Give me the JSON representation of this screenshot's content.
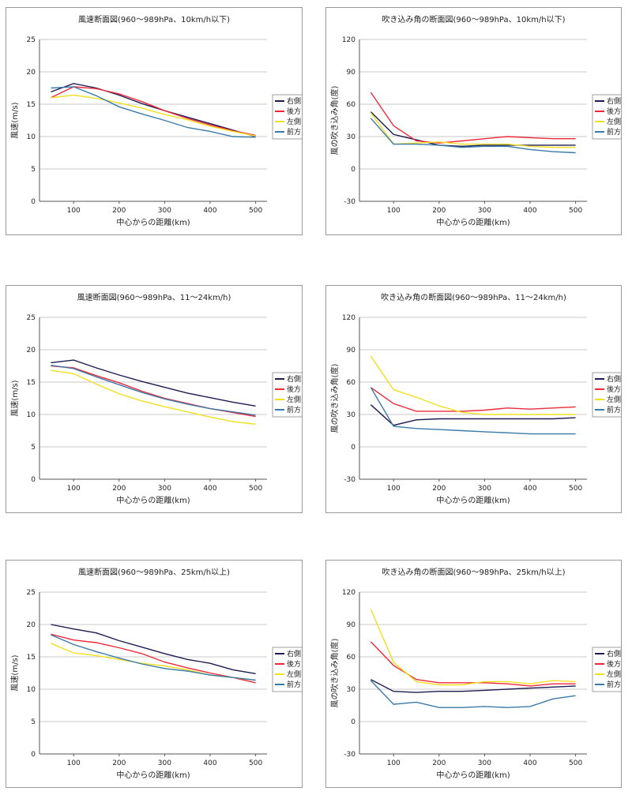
{
  "legend": [
    "右側",
    "後方",
    "左側",
    "前方"
  ],
  "colors": {
    "右側": "#1c1c50",
    "後方": "#ee2a3a",
    "左側": "#f0e020",
    "前方": "#3a7aa8"
  },
  "chart_data": [
    {
      "type": "line",
      "title": "風速断面図(960～989hPa、10km/h以下)",
      "xlabel": "中心からの距離(km)",
      "ylabel": "風速(m/s)",
      "xlim": [
        25,
        525
      ],
      "ylim": [
        0,
        25
      ],
      "yticks": [
        0,
        5,
        10,
        15,
        20,
        25
      ],
      "xticks": [
        100,
        200,
        300,
        400,
        500
      ],
      "x": [
        50,
        100,
        150,
        200,
        250,
        300,
        350,
        400,
        450,
        500
      ],
      "series": [
        {
          "name": "右側",
          "values": [
            16.9,
            18.2,
            17.5,
            16.4,
            15.1,
            14.0,
            13.0,
            12.0,
            11.0,
            10.0
          ]
        },
        {
          "name": "後方",
          "values": [
            16.0,
            17.7,
            17.4,
            16.6,
            15.4,
            14.0,
            12.8,
            11.8,
            10.9,
            10.2
          ]
        },
        {
          "name": "左側",
          "values": [
            16.0,
            16.4,
            15.9,
            15.2,
            14.4,
            13.4,
            12.6,
            11.6,
            10.8,
            10.1
          ]
        },
        {
          "name": "前方",
          "values": [
            17.5,
            17.7,
            16.3,
            14.6,
            13.5,
            12.5,
            11.4,
            10.8,
            10.0,
            9.9
          ]
        }
      ]
    },
    {
      "type": "line",
      "title": "吹き込み角の断面図(960～989hPa、10km/h以下)",
      "xlabel": "中心からの距離(km)",
      "ylabel": "風の吹き込み角(度)",
      "xlim": [
        25,
        525
      ],
      "ylim": [
        -30,
        120
      ],
      "yticks": [
        -30,
        0,
        30,
        60,
        90,
        120
      ],
      "xticks": [
        100,
        200,
        300,
        400,
        500
      ],
      "x": [
        50,
        100,
        150,
        200,
        250,
        300,
        350,
        400,
        450,
        500
      ],
      "series": [
        {
          "name": "右側",
          "values": [
            53,
            32,
            27,
            22,
            21,
            22,
            22,
            22,
            22,
            22
          ]
        },
        {
          "name": "後方",
          "values": [
            71,
            40,
            26,
            24,
            26,
            28,
            30,
            29,
            28,
            28
          ]
        },
        {
          "name": "左側",
          "values": [
            52,
            23,
            24,
            25,
            23,
            23,
            23,
            21,
            20,
            20
          ]
        },
        {
          "name": "前方",
          "values": [
            47,
            23,
            23,
            22,
            20,
            21,
            21,
            18,
            16,
            15
          ]
        }
      ]
    },
    {
      "type": "line",
      "title": "風速断面図(960～989hPa、11～24km/h)",
      "xlabel": "中心からの距離(km)",
      "ylabel": "風速(m/s)",
      "xlim": [
        25,
        525
      ],
      "ylim": [
        0,
        25
      ],
      "yticks": [
        0,
        5,
        10,
        15,
        20,
        25
      ],
      "xticks": [
        100,
        200,
        300,
        400,
        500
      ],
      "x": [
        50,
        100,
        150,
        200,
        250,
        300,
        350,
        400,
        450,
        500
      ],
      "series": [
        {
          "name": "右側",
          "values": [
            18.0,
            18.4,
            17.2,
            16.1,
            15.1,
            14.2,
            13.3,
            12.6,
            11.9,
            11.3
          ]
        },
        {
          "name": "後方",
          "values": [
            17.5,
            17.2,
            16.0,
            14.9,
            13.6,
            12.5,
            11.7,
            10.9,
            10.3,
            9.7
          ]
        },
        {
          "name": "左側",
          "values": [
            16.8,
            16.3,
            14.7,
            13.2,
            12.1,
            11.2,
            10.4,
            9.6,
            8.9,
            8.5
          ]
        },
        {
          "name": "前方",
          "values": [
            17.6,
            17.1,
            15.8,
            14.6,
            13.4,
            12.4,
            11.6,
            10.9,
            10.4,
            9.9
          ]
        }
      ]
    },
    {
      "type": "line",
      "title": "吹き込み角の断面図(960～989hPa、11～24km/h)",
      "xlabel": "中心からの距離(km)",
      "ylabel": "風の吹き込み角(度)",
      "xlim": [
        25,
        525
      ],
      "ylim": [
        -30,
        120
      ],
      "yticks": [
        -30,
        0,
        30,
        60,
        90,
        120
      ],
      "xticks": [
        100,
        200,
        300,
        400,
        500
      ],
      "x": [
        50,
        100,
        150,
        200,
        250,
        300,
        350,
        400,
        450,
        500
      ],
      "series": [
        {
          "name": "右側",
          "values": [
            39,
            20,
            25,
            26,
            26,
            26,
            26,
            26,
            26,
            27
          ]
        },
        {
          "name": "後方",
          "values": [
            55,
            40,
            33,
            33,
            33,
            34,
            36,
            35,
            36,
            37
          ]
        },
        {
          "name": "左側",
          "values": [
            84,
            53,
            46,
            38,
            32,
            30,
            30,
            30,
            30,
            30
          ]
        },
        {
          "name": "前方",
          "values": [
            55,
            19,
            17,
            16,
            15,
            14,
            13,
            12,
            12,
            12
          ]
        }
      ]
    },
    {
      "type": "line",
      "title": "風速断面図(960～989hPa、25km/h以上)",
      "xlabel": "中心からの距離(km)",
      "ylabel": "風速(m/s)",
      "xlim": [
        25,
        525
      ],
      "ylim": [
        0,
        25
      ],
      "yticks": [
        0,
        5,
        10,
        15,
        20,
        25
      ],
      "xticks": [
        100,
        200,
        300,
        400,
        500
      ],
      "x": [
        50,
        100,
        150,
        200,
        250,
        300,
        350,
        400,
        450,
        500
      ],
      "series": [
        {
          "name": "右側",
          "values": [
            20.0,
            19.3,
            18.7,
            17.5,
            16.5,
            15.5,
            14.6,
            14.0,
            13.0,
            12.4
          ]
        },
        {
          "name": "後方",
          "values": [
            18.5,
            17.6,
            17.2,
            16.4,
            15.5,
            14.2,
            13.3,
            12.5,
            11.8,
            11.0
          ]
        },
        {
          "name": "左側",
          "values": [
            17.1,
            15.6,
            15.2,
            14.6,
            14.0,
            13.6,
            13.0,
            12.2,
            11.8,
            11.4
          ]
        },
        {
          "name": "前方",
          "values": [
            18.4,
            16.9,
            15.8,
            14.8,
            13.9,
            13.2,
            12.8,
            12.2,
            11.8,
            11.4
          ]
        }
      ]
    },
    {
      "type": "line",
      "title": "吹き込み角の断面図(960～989hPa、25km/h以上)",
      "xlabel": "中心からの距離(km)",
      "ylabel": "風の吹き込み角(度)",
      "xlim": [
        25,
        525
      ],
      "ylim": [
        -30,
        120
      ],
      "yticks": [
        -30,
        0,
        30,
        60,
        90,
        120
      ],
      "xticks": [
        100,
        200,
        300,
        400,
        500
      ],
      "x": [
        50,
        100,
        150,
        200,
        250,
        300,
        350,
        400,
        450,
        500
      ],
      "series": [
        {
          "name": "右側",
          "values": [
            39,
            28,
            27,
            28,
            28,
            29,
            30,
            31,
            32,
            33
          ]
        },
        {
          "name": "後方",
          "values": [
            74,
            52,
            39,
            36,
            36,
            36,
            35,
            33,
            35,
            35
          ]
        },
        {
          "name": "左側",
          "values": [
            104,
            55,
            37,
            34,
            34,
            37,
            37,
            35,
            38,
            37
          ]
        },
        {
          "name": "前方",
          "values": [
            38,
            16,
            18,
            13,
            13,
            14,
            13,
            14,
            21,
            24
          ]
        }
      ]
    }
  ]
}
